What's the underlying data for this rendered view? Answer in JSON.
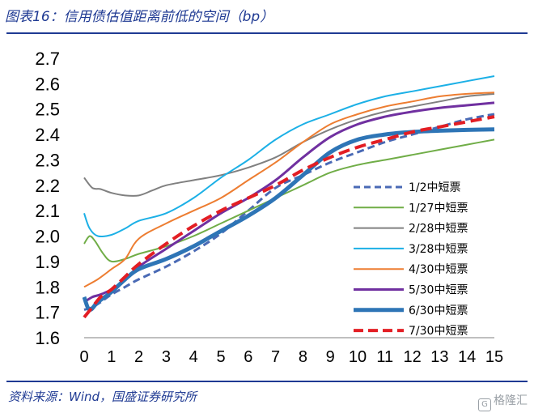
{
  "header": {
    "title": "图表16：信用债估值距离前低的空间（bp）"
  },
  "footer": {
    "source": "资料来源：Wind，国盛证券研究所",
    "watermark": "格隆汇"
  },
  "chart_data": {
    "type": "line",
    "title": "信用债估值距离前低的空间（bp）",
    "xlabel": "",
    "ylabel": "",
    "xlim": [
      0,
      15
    ],
    "ylim": [
      1.6,
      2.7
    ],
    "xticks": [
      0,
      1,
      2,
      3,
      4,
      5,
      6,
      7,
      8,
      9,
      10,
      11,
      12,
      13,
      14,
      15
    ],
    "yticks": [
      1.6,
      1.7,
      1.8,
      1.9,
      2.0,
      2.1,
      2.2,
      2.3,
      2.4,
      2.5,
      2.6,
      2.7
    ],
    "ytick_labels": [
      "1.6",
      "1.7",
      "1.8",
      "1.9",
      "2.0",
      "2.1",
      "2.2",
      "2.3",
      "2.4",
      "2.5",
      "2.6",
      "2.7"
    ],
    "grid": false,
    "legend_position": "right",
    "series": [
      {
        "name": "1/2中短票",
        "color": "#4a6ab5",
        "style": "dashed",
        "width": 3,
        "points": [
          [
            0,
            1.71
          ],
          [
            0.3,
            1.72
          ],
          [
            0.6,
            1.74
          ],
          [
            1,
            1.77
          ],
          [
            1.5,
            1.8
          ],
          [
            2,
            1.83
          ],
          [
            3,
            1.88
          ],
          [
            4,
            1.94
          ],
          [
            5,
            2.01
          ],
          [
            6,
            2.1
          ],
          [
            7,
            2.19
          ],
          [
            8,
            2.24
          ],
          [
            9,
            2.29
          ],
          [
            10,
            2.33
          ],
          [
            11,
            2.37
          ],
          [
            12,
            2.4
          ],
          [
            13,
            2.43
          ],
          [
            14,
            2.46
          ],
          [
            15,
            2.48
          ]
        ]
      },
      {
        "name": "1/27中短票",
        "color": "#70ad47",
        "style": "solid",
        "width": 2,
        "points": [
          [
            0,
            1.97
          ],
          [
            0.2,
            2.0
          ],
          [
            0.4,
            1.98
          ],
          [
            0.7,
            1.93
          ],
          [
            1,
            1.9
          ],
          [
            1.5,
            1.91
          ],
          [
            2,
            1.93
          ],
          [
            3,
            1.96
          ],
          [
            4,
            2.0
          ],
          [
            5,
            2.05
          ],
          [
            6,
            2.1
          ],
          [
            7,
            2.15
          ],
          [
            8,
            2.2
          ],
          [
            9,
            2.25
          ],
          [
            10,
            2.28
          ],
          [
            11,
            2.3
          ],
          [
            12,
            2.32
          ],
          [
            13,
            2.34
          ],
          [
            14,
            2.36
          ],
          [
            15,
            2.38
          ]
        ]
      },
      {
        "name": "2/28中短票",
        "color": "#808080",
        "style": "solid",
        "width": 2,
        "points": [
          [
            0,
            2.23
          ],
          [
            0.3,
            2.19
          ],
          [
            0.6,
            2.185
          ],
          [
            1,
            2.17
          ],
          [
            1.5,
            2.16
          ],
          [
            2,
            2.16
          ],
          [
            2.5,
            2.18
          ],
          [
            3,
            2.2
          ],
          [
            4,
            2.22
          ],
          [
            5,
            2.24
          ],
          [
            6,
            2.27
          ],
          [
            7,
            2.31
          ],
          [
            8,
            2.37
          ],
          [
            9,
            2.42
          ],
          [
            10,
            2.46
          ],
          [
            11,
            2.49
          ],
          [
            12,
            2.51
          ],
          [
            13,
            2.53
          ],
          [
            14,
            2.55
          ],
          [
            15,
            2.56
          ]
        ]
      },
      {
        "name": "3/28中短票",
        "color": "#1cb0e6",
        "style": "solid",
        "width": 2,
        "points": [
          [
            0,
            2.09
          ],
          [
            0.2,
            2.03
          ],
          [
            0.5,
            2.0
          ],
          [
            1,
            2.005
          ],
          [
            1.5,
            2.03
          ],
          [
            2,
            2.06
          ],
          [
            3,
            2.09
          ],
          [
            4,
            2.15
          ],
          [
            5,
            2.23
          ],
          [
            6,
            2.3
          ],
          [
            7,
            2.38
          ],
          [
            8,
            2.44
          ],
          [
            9,
            2.48
          ],
          [
            10,
            2.52
          ],
          [
            11,
            2.55
          ],
          [
            12,
            2.57
          ],
          [
            13,
            2.59
          ],
          [
            14,
            2.61
          ],
          [
            15,
            2.63
          ]
        ]
      },
      {
        "name": "4/30中短票",
        "color": "#ed7d31",
        "style": "solid",
        "width": 2,
        "points": [
          [
            0,
            1.8
          ],
          [
            0.5,
            1.83
          ],
          [
            1,
            1.87
          ],
          [
            1.5,
            1.91
          ],
          [
            2,
            1.99
          ],
          [
            3,
            2.05
          ],
          [
            4,
            2.1
          ],
          [
            5,
            2.15
          ],
          [
            6,
            2.22
          ],
          [
            7,
            2.29
          ],
          [
            8,
            2.37
          ],
          [
            9,
            2.44
          ],
          [
            10,
            2.48
          ],
          [
            11,
            2.51
          ],
          [
            12,
            2.53
          ],
          [
            13,
            2.55
          ],
          [
            14,
            2.56
          ],
          [
            15,
            2.565
          ]
        ]
      },
      {
        "name": "5/30中短票",
        "color": "#7030a0",
        "style": "solid",
        "width": 3,
        "points": [
          [
            0,
            1.74
          ],
          [
            0.3,
            1.76
          ],
          [
            0.6,
            1.77
          ],
          [
            1,
            1.79
          ],
          [
            1.5,
            1.83
          ],
          [
            2,
            1.88
          ],
          [
            3,
            1.95
          ],
          [
            4,
            2.02
          ],
          [
            5,
            2.09
          ],
          [
            6,
            2.15
          ],
          [
            7,
            2.22
          ],
          [
            8,
            2.31
          ],
          [
            9,
            2.39
          ],
          [
            10,
            2.44
          ],
          [
            11,
            2.47
          ],
          [
            12,
            2.49
          ],
          [
            13,
            2.505
          ],
          [
            14,
            2.515
          ],
          [
            15,
            2.525
          ]
        ]
      },
      {
        "name": "6/30中短票",
        "color": "#2e75b6",
        "style": "solid",
        "width": 5,
        "points": [
          [
            0,
            1.76
          ],
          [
            0.2,
            1.71
          ],
          [
            0.5,
            1.74
          ],
          [
            1,
            1.78
          ],
          [
            1.5,
            1.83
          ],
          [
            2,
            1.87
          ],
          [
            3,
            1.91
          ],
          [
            4,
            1.96
          ],
          [
            5,
            2.02
          ],
          [
            6,
            2.08
          ],
          [
            7,
            2.15
          ],
          [
            8,
            2.24
          ],
          [
            9,
            2.33
          ],
          [
            10,
            2.38
          ],
          [
            11,
            2.4
          ],
          [
            12,
            2.41
          ],
          [
            13,
            2.415
          ],
          [
            14,
            2.418
          ],
          [
            15,
            2.42
          ]
        ]
      },
      {
        "name": "7/30中短票",
        "color": "#e31e24",
        "style": "dashed",
        "width": 4,
        "points": [
          [
            0,
            1.68
          ],
          [
            0.3,
            1.72
          ],
          [
            0.6,
            1.76
          ],
          [
            1,
            1.79
          ],
          [
            1.5,
            1.84
          ],
          [
            2,
            1.89
          ],
          [
            3,
            1.97
          ],
          [
            4,
            2.04
          ],
          [
            5,
            2.1
          ],
          [
            6,
            2.15
          ],
          [
            7,
            2.2
          ],
          [
            8,
            2.26
          ],
          [
            9,
            2.31
          ],
          [
            10,
            2.35
          ],
          [
            11,
            2.38
          ],
          [
            12,
            2.41
          ],
          [
            13,
            2.43
          ],
          [
            14,
            2.45
          ],
          [
            15,
            2.47
          ]
        ]
      }
    ]
  }
}
